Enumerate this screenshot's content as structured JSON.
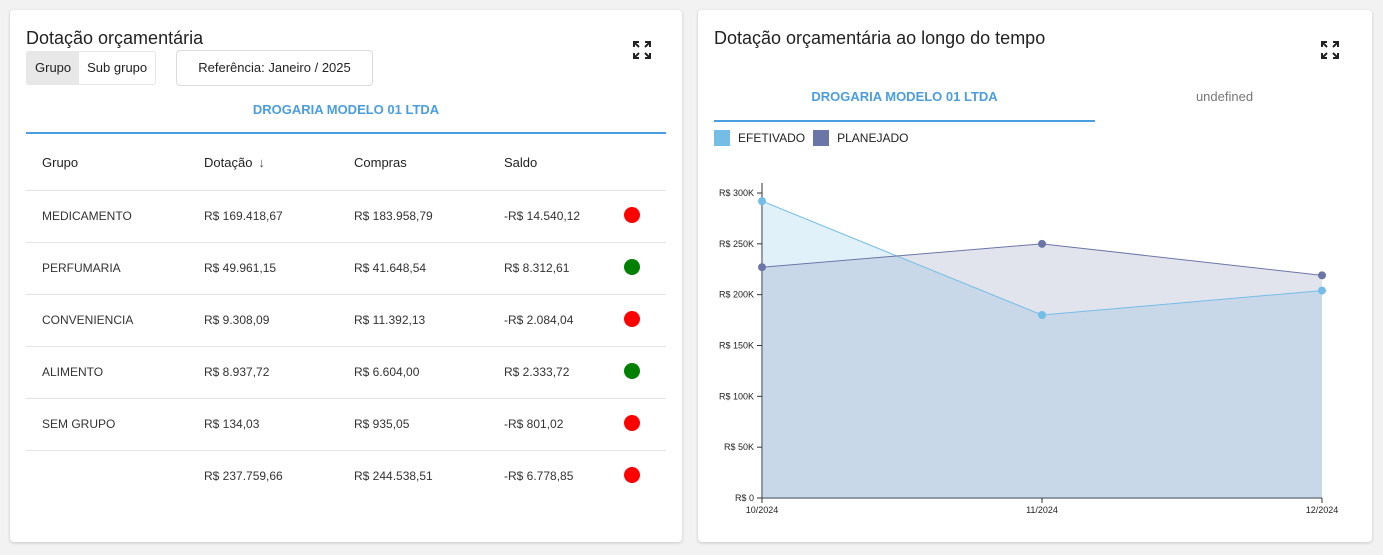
{
  "left_panel": {
    "title": "Dotação orçamentária",
    "segment": {
      "options": [
        "Grupo",
        "Sub grupo"
      ],
      "selected": "Grupo"
    },
    "reference_label": "Referência: Janeiro / 2025",
    "tab": "DROGARIA MODELO 01 LTDA",
    "table": {
      "headers": [
        "Grupo",
        "Dotação",
        "Compras",
        "Saldo"
      ],
      "sort_icon": "arrow-down-icon",
      "rows": [
        {
          "grupo": "MEDICAMENTO",
          "dotacao": "R$ 169.418,67",
          "compras": "R$ 183.958,79",
          "saldo": "-R$ 14.540,12",
          "status": "red"
        },
        {
          "grupo": "PERFUMARIA",
          "dotacao": "R$ 49.961,15",
          "compras": "R$ 41.648,54",
          "saldo": "R$ 8.312,61",
          "status": "green"
        },
        {
          "grupo": "CONVENIENCIA",
          "dotacao": "R$ 9.308,09",
          "compras": "R$ 11.392,13",
          "saldo": "-R$ 2.084,04",
          "status": "red"
        },
        {
          "grupo": "ALIMENTO",
          "dotacao": "R$ 8.937,72",
          "compras": "R$ 6.604,00",
          "saldo": "R$ 2.333,72",
          "status": "green"
        },
        {
          "grupo": "SEM GRUPO",
          "dotacao": "R$ 134,03",
          "compras": "R$ 935,05",
          "saldo": "-R$ 801,02",
          "status": "red"
        }
      ],
      "total": {
        "grupo": "",
        "dotacao": "R$ 237.759,66",
        "compras": "R$ 244.538,51",
        "saldo": "-R$ 6.778,85",
        "status": "red"
      }
    }
  },
  "right_panel": {
    "title": "Dotação orçamentária ao longo do tempo",
    "tabs": [
      "DROGARIA MODELO 01 LTDA",
      "undefined"
    ]
  },
  "colors": {
    "accent": "#4a9ee0",
    "red": "#ff0000",
    "green": "#008000",
    "efetivado": "#74bde6",
    "planejado": "#6c76a6"
  },
  "chart_data": {
    "type": "area",
    "categories": [
      "10/2024",
      "11/2024",
      "12/2024"
    ],
    "series": [
      {
        "name": "EFETIVADO",
        "values": [
          292000,
          180000,
          204000
        ]
      },
      {
        "name": "PLANEJADO",
        "values": [
          227000,
          250000,
          219000
        ]
      }
    ],
    "y_ticks": [
      "R$ 0",
      "R$ 50K",
      "R$ 100K",
      "R$ 150K",
      "R$ 200K",
      "R$ 250K",
      "R$ 300K"
    ],
    "ylim": [
      0,
      300000
    ],
    "legend": "top-left",
    "grid": false
  }
}
